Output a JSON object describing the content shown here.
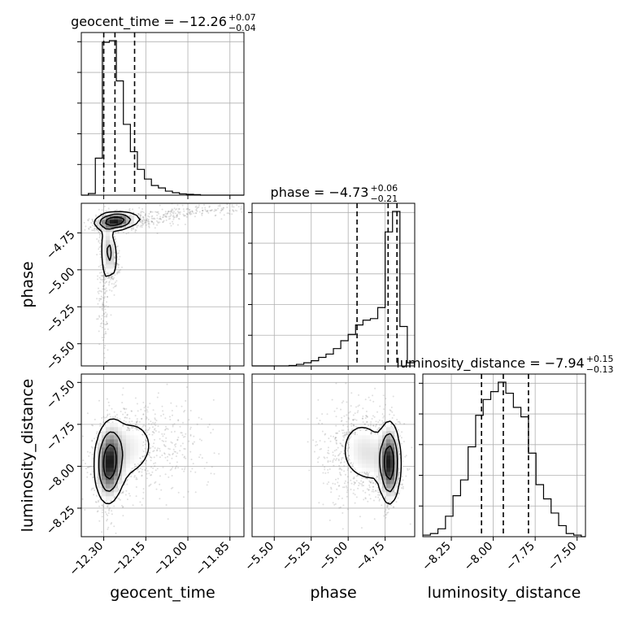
{
  "chart_data": {
    "type": "corner",
    "parameters": [
      "geocent_time",
      "phase",
      "luminosity_distance"
    ],
    "panel_titles": [
      {
        "prefix": "geocent_time = ",
        "value": "−12.26",
        "plus": "+0.07",
        "minus": "−0.04"
      },
      {
        "prefix": "phase = ",
        "value": "−4.73",
        "plus": "+0.06",
        "minus": "−0.21"
      },
      {
        "prefix": "luminosity_distance = ",
        "value": "−7.94",
        "plus": "+0.15",
        "minus": "−0.13"
      }
    ],
    "axis_labels": {
      "x": [
        "geocent_time",
        "phase",
        "luminosity_distance"
      ],
      "y": [
        "phase",
        "luminosity_distance"
      ]
    },
    "ranges": {
      "geocent_time": [
        -12.38,
        -11.8
      ],
      "phase": [
        -5.65,
        -4.55
      ],
      "luminosity_distance": [
        -8.42,
        -7.45
      ]
    },
    "tick_labels": {
      "geocent_time": [
        "−12.30",
        "−12.15",
        "−12.00",
        "−11.85"
      ],
      "phase": [
        "−5.50",
        "−5.25",
        "−5.00",
        "−4.75"
      ],
      "luminosity_distance": [
        "−8.25",
        "−8.00",
        "−7.75",
        "−7.50"
      ],
      "phase_y": [
        "−4.75",
        "−5.00",
        "−5.25",
        "−5.50"
      ],
      "luminosity_distance_y": [
        "−7.50",
        "−7.75",
        "−8.00",
        "−8.25"
      ]
    },
    "tick_values": {
      "geocent_time": [
        -12.3,
        -12.15,
        -12.0,
        -11.85
      ],
      "phase": [
        -5.5,
        -5.25,
        -5.0,
        -4.75
      ],
      "luminosity_distance": [
        -8.25,
        -8.0,
        -7.75,
        -7.5
      ]
    },
    "quantiles": {
      "geocent_time": [
        -12.3,
        -12.26,
        -12.19
      ],
      "phase": [
        -4.94,
        -4.73,
        -4.67
      ],
      "luminosity_distance": [
        -8.07,
        -7.94,
        -7.79
      ]
    },
    "histograms": {
      "geocent_time": {
        "edges": [
          -12.38,
          -12.355,
          -12.33,
          -12.305,
          -12.28,
          -12.255,
          -12.23,
          -12.205,
          -12.18,
          -12.155,
          -12.13,
          -12.105,
          -12.08,
          -12.055,
          -12.03,
          -12.005,
          -11.98,
          -11.955,
          -11.93,
          -11.905,
          -11.88,
          -11.855,
          -11.83,
          -11.8
        ],
        "counts": [
          0,
          0.01,
          0.23,
          0.95,
          0.96,
          0.71,
          0.44,
          0.27,
          0.16,
          0.1,
          0.06,
          0.045,
          0.025,
          0.015,
          0.008,
          0.005,
          0.003,
          0,
          0,
          0,
          0,
          0,
          0
        ]
      },
      "phase": {
        "edges": [
          -5.65,
          -5.6,
          -5.55,
          -5.5,
          -5.45,
          -5.4,
          -5.35,
          -5.3,
          -5.25,
          -5.2,
          -5.15,
          -5.1,
          -5.05,
          -5.0,
          -4.95,
          -4.9,
          -4.85,
          -4.8,
          -4.75,
          -4.7,
          -4.65,
          -4.6,
          -4.55
        ],
        "counts": [
          0,
          0,
          0,
          0,
          0,
          0.003,
          0.01,
          0.02,
          0.033,
          0.054,
          0.075,
          0.11,
          0.16,
          0.2,
          0.26,
          0.29,
          0.3,
          0.37,
          0.85,
          0.98,
          0.25,
          0.02
        ]
      },
      "luminosity_distance": {
        "edges": [
          -8.42,
          -8.375,
          -8.33,
          -8.285,
          -8.24,
          -8.195,
          -8.15,
          -8.105,
          -8.06,
          -8.015,
          -7.97,
          -7.925,
          -7.88,
          -7.835,
          -7.79,
          -7.745,
          -7.7,
          -7.655,
          -7.61,
          -7.565,
          -7.52,
          -7.475,
          -7.45
        ],
        "counts": [
          0.01,
          0.02,
          0.05,
          0.13,
          0.26,
          0.36,
          0.57,
          0.77,
          0.87,
          0.92,
          0.98,
          0.91,
          0.82,
          0.76,
          0.53,
          0.33,
          0.24,
          0.15,
          0.07,
          0.02,
          0.01,
          0
        ]
      }
    },
    "gaussian_components": {
      "geocent_time-phase": [
        {
          "w": 0.45,
          "mx": -12.26,
          "my": -4.67,
          "sx": 0.035,
          "sy": 0.03,
          "rho": 0.2
        },
        {
          "w": 0.25,
          "mx": -12.28,
          "my": -4.88,
          "sx": 0.015,
          "sy": 0.1,
          "rho": -0.3
        },
        {
          "w": 0.1,
          "mx": -12.15,
          "my": -4.66,
          "sx": 0.08,
          "sy": 0.04,
          "rho": 0.5
        },
        {
          "w": 0.1,
          "mx": -11.95,
          "my": -4.6,
          "sx": 0.12,
          "sy": 0.025,
          "rho": 0.6
        },
        {
          "w": 0.1,
          "mx": -12.3,
          "my": -5.12,
          "sx": 0.01,
          "sy": 0.22,
          "rho": 0
        }
      ],
      "geocent_time-luminosity_distance": [
        {
          "w": 0.55,
          "mx": -12.28,
          "my": -7.98,
          "sx": 0.025,
          "sy": 0.12,
          "rho": 0.1
        },
        {
          "w": 0.3,
          "mx": -12.22,
          "my": -7.9,
          "sx": 0.06,
          "sy": 0.13,
          "rho": 0.2
        },
        {
          "w": 0.15,
          "mx": -12.1,
          "my": -7.9,
          "sx": 0.1,
          "sy": 0.15,
          "rho": 0.1
        }
      ],
      "phase-luminosity_distance": [
        {
          "w": 0.5,
          "mx": -4.72,
          "my": -7.98,
          "sx": 0.035,
          "sy": 0.12,
          "rho": 0
        },
        {
          "w": 0.3,
          "mx": -4.85,
          "my": -7.92,
          "sx": 0.1,
          "sy": 0.12,
          "rho": -0.3
        },
        {
          "w": 0.2,
          "mx": -4.98,
          "my": -7.95,
          "sx": 0.12,
          "sy": 0.15,
          "rho": 0
        }
      ]
    },
    "colors": {
      "line": "#000000",
      "scatter": "#808080",
      "grid": "#b0b0b0"
    },
    "grid": true,
    "legend": "none"
  }
}
